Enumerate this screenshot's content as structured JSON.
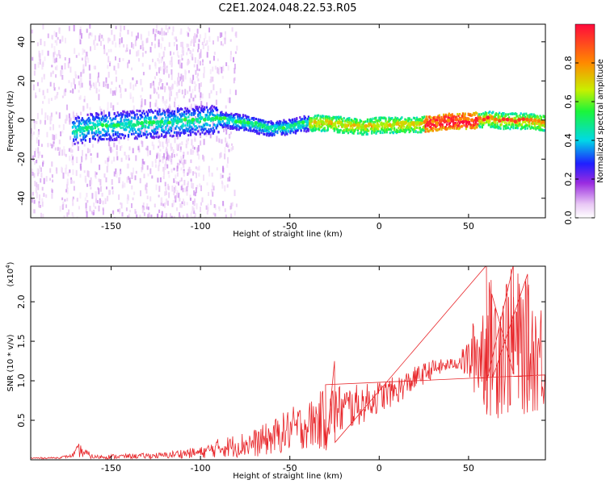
{
  "title": "C2E1.2024.048.22.53.R05",
  "colors": {
    "snr_line": "#e8262a",
    "frame": "#000000"
  },
  "chart_data": [
    {
      "type": "heatmap",
      "xlabel": "Height of straight line (km)",
      "ylabel": "Frequency (Hz)",
      "xlim": [
        -195,
        93
      ],
      "ylim": [
        -50,
        49
      ],
      "xticks": [
        -150,
        -100,
        -50,
        0,
        50
      ],
      "xtick_labels": [
        "-150",
        "-100",
        "-50",
        "0",
        "50"
      ],
      "yticks": [
        -40,
        -20,
        0,
        20,
        40
      ],
      "ytick_labels": [
        "-40",
        "-20",
        "0",
        "20",
        "40"
      ],
      "colorbar": {
        "label": "Normalized spectral amplitude",
        "range": [
          0,
          1
        ],
        "ticks": [
          0.0,
          0.2,
          0.4,
          0.6,
          0.8
        ],
        "tick_labels": [
          "0.0",
          "0.2",
          "0.4",
          "0.6",
          "0.8"
        ],
        "colormap": [
          "#ffffff",
          "#e9c8f5",
          "#9a2be0",
          "#1f1fff",
          "#00d9e6",
          "#1bf53a",
          "#c8f000",
          "#ff8a00",
          "#ff0a3c"
        ]
      },
      "ridge": {
        "x": [
          -170,
          -160,
          -140,
          -120,
          -105,
          -90,
          -75,
          -60,
          -50,
          -40,
          -30,
          -20,
          -10,
          0,
          10,
          20,
          30,
          40,
          50,
          60,
          70,
          80,
          93
        ],
        "frequency": [
          -5,
          -3,
          -2,
          -1,
          0,
          1,
          -1,
          -4,
          -3,
          -1,
          -1,
          -2,
          -3,
          -2,
          -2,
          -2,
          -1,
          0,
          0,
          1,
          0,
          0,
          -1
        ]
      }
    },
    {
      "type": "line",
      "xlabel": "Height of straight line (km)",
      "ylabel": "SNR (10 * v/v)",
      "y_multiplier_label": "(x10",
      "y_multiplier_exp": "4",
      "y_multiplier_close": ")",
      "xlim": [
        -195,
        93
      ],
      "ylim": [
        0,
        24500
      ],
      "xticks": [
        -150,
        -100,
        -50,
        0,
        50
      ],
      "xtick_labels": [
        "-150",
        "-100",
        "-50",
        "0",
        "50"
      ],
      "yticks": [
        5000,
        10000,
        15000,
        20000
      ],
      "ytick_labels": [
        "0.5",
        "1.0",
        "1.5",
        "2.0"
      ],
      "series": [
        {
          "x": [
            -195,
            -180,
            -172,
            -168,
            -160,
            -150,
            -140,
            -130,
            -120,
            -110,
            -100,
            -90,
            -80,
            -70,
            -60,
            -50,
            -40,
            -30,
            -25,
            -20,
            -10,
            0,
            10,
            20,
            30,
            40,
            45,
            50,
            55,
            60,
            65,
            70,
            75,
            80,
            85,
            93
          ],
          "values": [
            200,
            250,
            500,
            1200,
            350,
            400,
            450,
            500,
            550,
            800,
            900,
            1500,
            1800,
            2100,
            2800,
            3800,
            4400,
            5200,
            6200,
            6400,
            7000,
            8000,
            8800,
            10300,
            11500,
            12100,
            12400,
            12600,
            13500,
            14000,
            14400,
            15000,
            14800,
            14500,
            13800,
            13000
          ],
          "amplitude": [
            100,
            100,
            200,
            900,
            250,
            300,
            300,
            350,
            400,
            600,
            700,
            1200,
            1500,
            1800,
            2200,
            2800,
            3000,
            4000,
            3500,
            3200,
            2500,
            2000,
            1800,
            1500,
            1200,
            700,
            1000,
            3000,
            6000,
            8500,
            9500,
            9500,
            9500,
            9000,
            8000,
            7000
          ],
          "peaks": [
            {
              "x": -30,
              "y": 9500
            },
            {
              "x": -25,
              "y": 12500
            },
            {
              "x": 60,
              "y": 24600
            },
            {
              "x": 75,
              "y": 24600
            },
            {
              "x": 63,
              "y": 21000
            },
            {
              "x": 83,
              "y": 23500
            }
          ]
        }
      ]
    }
  ]
}
